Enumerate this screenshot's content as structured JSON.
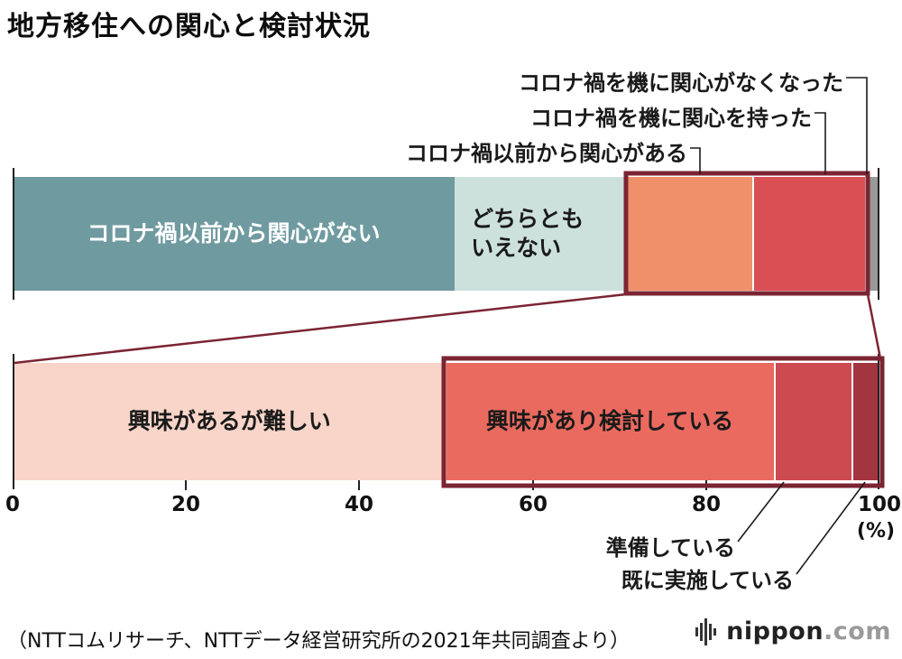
{
  "title": "地方移住への関心と検討状況",
  "colors": {
    "outline": "#7b2433",
    "callout_line": "#1a1a1a",
    "tick": "#222222"
  },
  "chart_data": {
    "type": "bar",
    "orientation": "horizontal-stacked",
    "title": "地方移住への関心と検討状況",
    "x_axis": {
      "range": [
        0,
        100
      ],
      "ticks": [
        "0",
        "20",
        "40",
        "60",
        "80",
        "100"
      ],
      "unit_label": "(%)"
    },
    "bars": [
      {
        "segments": [
          {
            "label": "コロナ禍以前から関心がない",
            "value": 51,
            "color": "#6f9aa0",
            "text_color": "#ffffff"
          },
          {
            "label": "どちらともいえない",
            "value": 20,
            "color": "#cce0dc",
            "text_color": "#1a1a1a"
          },
          {
            "label": "コロナ禍以前から関心がある",
            "value": 14.5,
            "color": "#f0906b"
          },
          {
            "label": "コロナ禍を機に関心を持った",
            "value": 13,
            "color": "#d94f54"
          },
          {
            "label": "コロナ禍を機に関心がなくなった",
            "value": 1.5,
            "color": "#999999"
          }
        ]
      },
      {
        "segments": [
          {
            "label": "興味があるが難しい",
            "value": 50,
            "color": "#f8d5c8",
            "text_color": "#1a1a1a"
          },
          {
            "label": "興味があり検討している",
            "value": 38,
            "color": "#ea6a5f",
            "text_color": "#1a1a1a"
          },
          {
            "label": "準備している",
            "value": 9,
            "color": "#cd4a50"
          },
          {
            "label": "既に実施している",
            "value": 3,
            "color": "#a23540"
          }
        ]
      }
    ]
  },
  "source": "（NTTコムリサーチ、NTTデータ経営研究所の2021年共同調査より）",
  "logo": {
    "brand": "nippon",
    "tld": ".com"
  }
}
